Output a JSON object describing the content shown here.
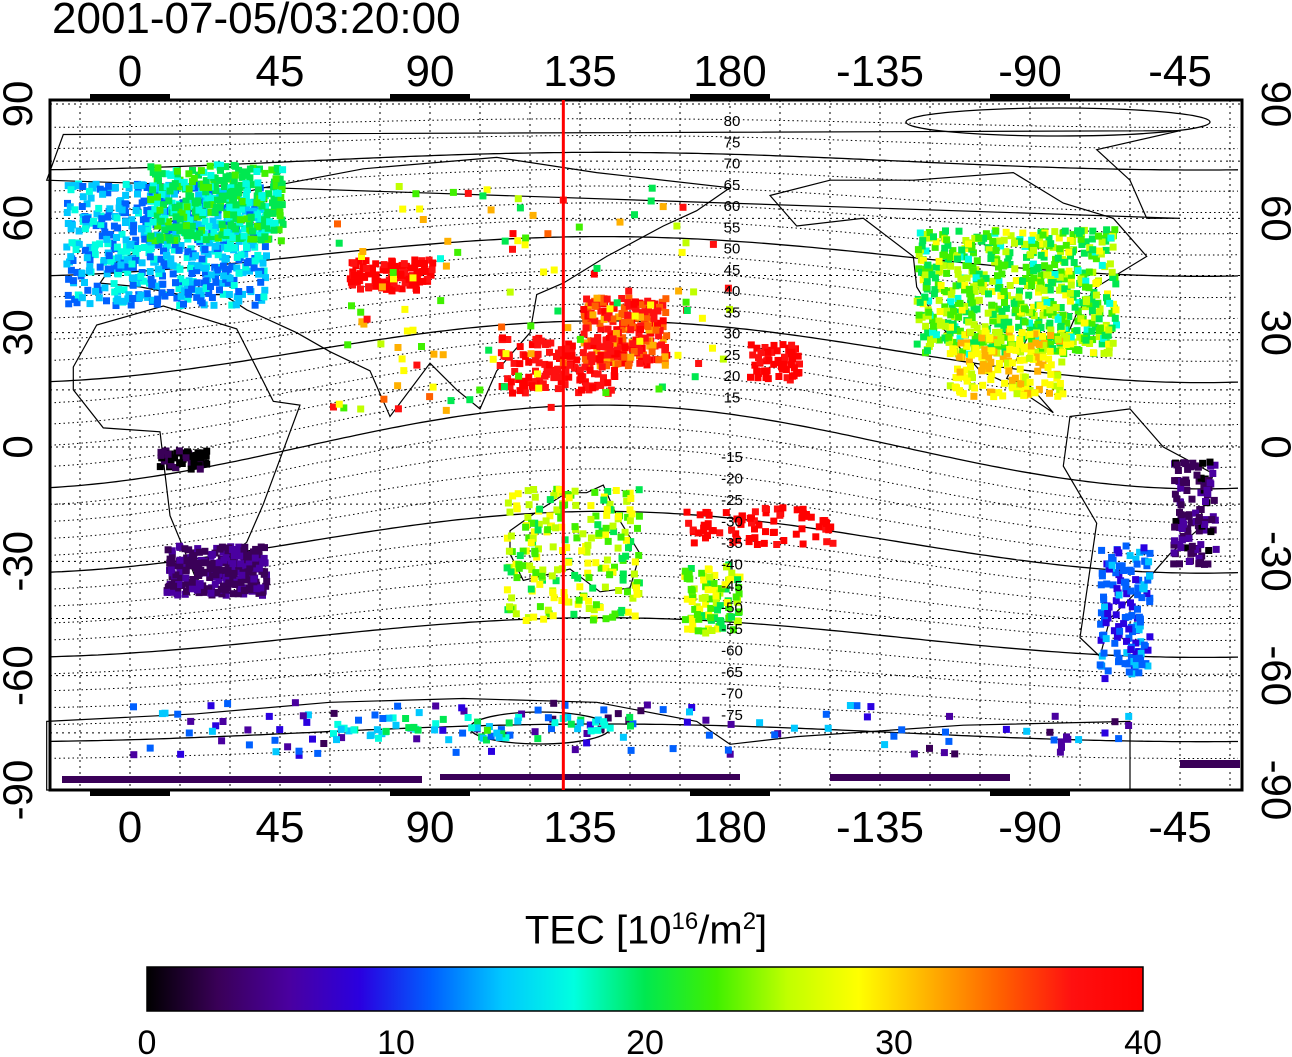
{
  "title": "2001-07-05/03:20:00",
  "map": {
    "top_lon_labels": [
      "0",
      "45",
      "90",
      "135",
      "180",
      "-135",
      "-90",
      "-45"
    ],
    "bottom_lon_labels": [
      "0",
      "45",
      "90",
      "135",
      "180",
      "-135",
      "-90",
      "-45"
    ],
    "left_lat_labels": [
      "90",
      "60",
      "30",
      "0",
      "-30",
      "-60",
      "-90"
    ],
    "right_lat_labels": [
      "90",
      "60",
      "30",
      "0",
      "-30",
      "-60",
      "-90"
    ],
    "contour_labels": [
      "80",
      "75",
      "70",
      "65",
      "60",
      "55",
      "50",
      "45",
      "40",
      "35",
      "30",
      "25",
      "20",
      "15",
      "-15",
      "-20",
      "-25",
      "-30",
      "-35",
      "-40",
      "-45",
      "-50",
      "-55",
      "-60",
      "-65",
      "-70",
      "-75"
    ],
    "meridian_line_lon": 130,
    "meridian_line_color": "#ff0000"
  },
  "colorbar": {
    "title_main": "TEC  [10",
    "title_sup1": "16",
    "title_mid": "/m",
    "title_sup2": "2",
    "title_end": "]",
    "ticks": [
      "0",
      "10",
      "20",
      "30",
      "40"
    ],
    "range": [
      0,
      40
    ],
    "colors": [
      "#000000",
      "#3a0058",
      "#4a00a0",
      "#2a00e0",
      "#0060ff",
      "#00c8ff",
      "#00ffe0",
      "#00e850",
      "#40f000",
      "#c0ff00",
      "#ffff00",
      "#ffb000",
      "#ff6000",
      "#ff1010",
      "#ff0000"
    ]
  }
}
